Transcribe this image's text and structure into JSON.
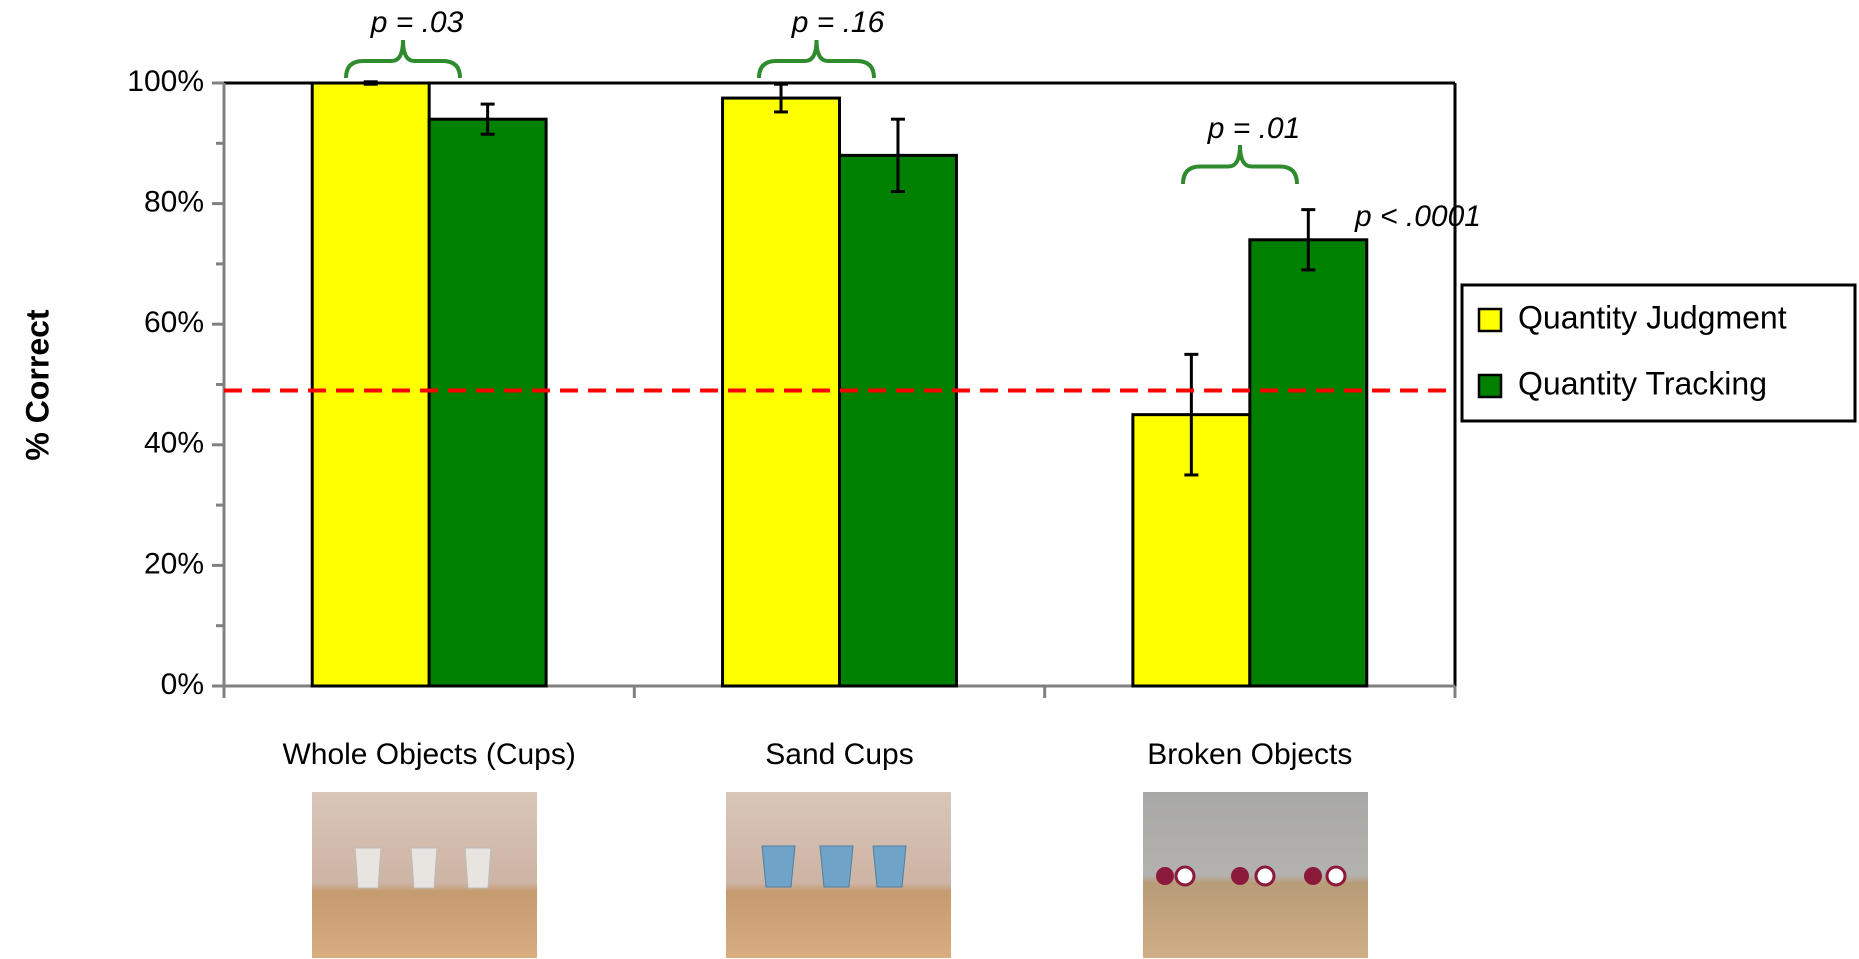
{
  "chart_data": {
    "type": "bar",
    "y_label": "% Correct",
    "categories": [
      "Whole Objects (Cups)",
      "Sand Cups",
      "Broken Objects"
    ],
    "series": [
      {
        "name": "Quantity Judgment",
        "color": "#ffff00",
        "values": [
          100,
          97.5,
          45
        ],
        "errors": [
          0.2,
          2.3,
          10
        ]
      },
      {
        "name": "Quantity Tracking",
        "color": "#008000",
        "values": [
          94,
          88,
          74
        ],
        "errors": [
          2.5,
          6,
          5
        ]
      }
    ],
    "ylim": [
      0,
      100
    ],
    "yticks": [
      {
        "value": 0,
        "label": "0%"
      },
      {
        "value": 20,
        "label": "20%"
      },
      {
        "value": 40,
        "label": "40%"
      },
      {
        "value": 60,
        "label": "60%"
      },
      {
        "value": 80,
        "label": "80%"
      },
      {
        "value": 100,
        "label": "100%"
      }
    ],
    "minor_yticks": [
      10,
      30,
      50,
      70,
      90
    ],
    "chance_line": {
      "value": 49,
      "color": "#ff0000"
    },
    "annotations": [
      "p = .03",
      "p = .16",
      "p = .01",
      "p < .0001"
    ],
    "legend": "right"
  }
}
